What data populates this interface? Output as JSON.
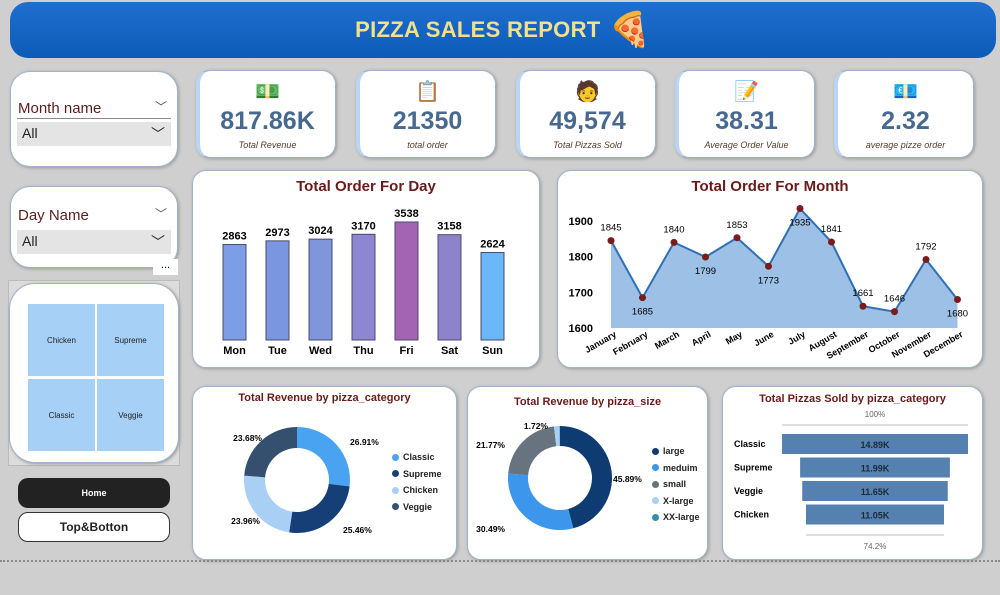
{
  "header": {
    "title": "PIZZA SALES REPORT",
    "icon": "pizza-icon"
  },
  "kpis": [
    {
      "value": "817.86K",
      "label": "Total Revenue",
      "icon": "money-stack-icon"
    },
    {
      "value": "21350",
      "label": "total order",
      "icon": "order-list-icon"
    },
    {
      "value": "49,574",
      "label": "Total Pizzas Sold",
      "icon": "delivery-person-icon"
    },
    {
      "value": "38.31",
      "label": "Average Order Value",
      "icon": "clipboard-icon"
    },
    {
      "value": "2.32",
      "label": "average pizze order",
      "icon": "cash-icon"
    }
  ],
  "filters": {
    "month": {
      "label": "Month name",
      "value": "All"
    },
    "day": {
      "label": "Day Name",
      "value": "All"
    },
    "more": "...",
    "tiles": [
      "Chicken",
      "Supreme",
      "Classic",
      "Veggie"
    ]
  },
  "buttons": {
    "home": "Home",
    "top": "Top&Botton"
  },
  "chart_data": [
    {
      "type": "bar",
      "title": "Total Order For Day",
      "categories": [
        "Mon",
        "Tue",
        "Wed",
        "Thu",
        "Fri",
        "Sat",
        "Sun"
      ],
      "values": [
        2863,
        2973,
        3024,
        3170,
        3538,
        3158,
        2624
      ],
      "colors": [
        "#7b9ee6",
        "#7b96e0",
        "#7f95dc",
        "#8d87d2",
        "#a464b4",
        "#8d82cc",
        "#6bb8f8"
      ],
      "ylim": [
        0,
        3538
      ]
    },
    {
      "type": "area",
      "title": "Total Order For Month",
      "categories": [
        "January",
        "February",
        "March",
        "April",
        "May",
        "June",
        "July",
        "August",
        "September",
        "October",
        "November",
        "December"
      ],
      "values": [
        1845,
        1685,
        1840,
        1799,
        1853,
        1773,
        1935,
        1841,
        1661,
        1646,
        1792,
        1680
      ],
      "ylim": [
        1600,
        1900
      ],
      "yticks": [
        1600,
        1700,
        1800,
        1900
      ]
    },
    {
      "type": "pie",
      "title": "Total Revenue by pizza_category",
      "categories": [
        "Classic",
        "Supreme",
        "Chicken",
        "Veggie"
      ],
      "values": [
        26.91,
        25.46,
        23.96,
        23.68
      ],
      "labels": [
        "26.91%",
        "25.46%",
        "23.96%",
        "23.68%"
      ],
      "colors": [
        "#4aa3f0",
        "#173f77",
        "#a9cff5",
        "#35506e"
      ]
    },
    {
      "type": "pie",
      "title": "Total Revenue by pizza_size",
      "categories": [
        "large",
        "meduim",
        "small",
        "X-large",
        "XX-large"
      ],
      "values": [
        45.89,
        30.49,
        21.77,
        1.72,
        0.13
      ],
      "labels": [
        "45.89%",
        "30.49%",
        "21.77%",
        "1.72%",
        ""
      ],
      "colors": [
        "#0e3b72",
        "#3b96ec",
        "#67737f",
        "#a9cff5",
        "#2f8fb0"
      ]
    },
    {
      "type": "bar",
      "title": "Total Pizzas Sold by pizza_category",
      "categories": [
        "Classic",
        "Supreme",
        "Veggie",
        "Chicken"
      ],
      "values": [
        14.89,
        11.99,
        11.65,
        11.05
      ],
      "labels": [
        "14.89K",
        "11.99K",
        "11.65K",
        "11.05K"
      ],
      "top_label": "100%",
      "bottom_label": "74.2%",
      "color": "#5581b0"
    }
  ]
}
